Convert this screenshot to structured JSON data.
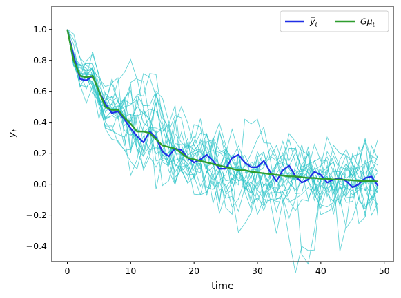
{
  "chart_data": {
    "type": "line",
    "xlabel": "time",
    "ylabel": "y_t",
    "xlim": [
      -2.45,
      51.45
    ],
    "ylim": [
      -0.5,
      1.15
    ],
    "x_ticks": [
      0,
      10,
      20,
      30,
      40,
      50
    ],
    "x_tick_labels": [
      "0",
      "10",
      "20",
      "30",
      "40",
      "50"
    ],
    "y_ticks": [
      -0.4,
      -0.2,
      0.0,
      0.2,
      0.4,
      0.6,
      0.8,
      1.0
    ],
    "y_tick_labels": [
      "−0.4",
      "−0.2",
      "0.0",
      "0.2",
      "0.4",
      "0.6",
      "0.8",
      "1.0"
    ],
    "grid": false,
    "legend_position": "upper-right",
    "x": [
      0,
      1,
      2,
      3,
      4,
      5,
      6,
      7,
      8,
      9,
      10,
      11,
      12,
      13,
      14,
      15,
      16,
      17,
      18,
      19,
      20,
      21,
      22,
      23,
      24,
      25,
      26,
      27,
      28,
      29,
      30,
      31,
      32,
      33,
      34,
      35,
      36,
      37,
      38,
      39,
      40,
      41,
      42,
      43,
      44,
      45,
      46,
      47,
      48,
      49
    ],
    "series": [
      {
        "name": "ȳ_t",
        "color": "#1f2ee6",
        "values": [
          1.0,
          0.83,
          0.68,
          0.67,
          0.7,
          0.6,
          0.52,
          0.46,
          0.47,
          0.42,
          0.36,
          0.31,
          0.27,
          0.34,
          0.3,
          0.21,
          0.18,
          0.23,
          0.22,
          0.17,
          0.14,
          0.16,
          0.19,
          0.15,
          0.1,
          0.1,
          0.17,
          0.19,
          0.14,
          0.11,
          0.11,
          0.15,
          0.08,
          0.02,
          0.09,
          0.12,
          0.05,
          0.01,
          0.03,
          0.08,
          0.06,
          0.01,
          0.03,
          0.04,
          0.02,
          -0.02,
          0.0,
          0.04,
          0.05,
          -0.01
        ]
      },
      {
        "name": "Gμ_t",
        "color": "#2e9d2e",
        "values": [
          1.0,
          0.8,
          0.7,
          0.69,
          0.7,
          0.6,
          0.5,
          0.48,
          0.48,
          0.43,
          0.39,
          0.34,
          0.34,
          0.33,
          0.29,
          0.25,
          0.24,
          0.23,
          0.2,
          0.17,
          0.16,
          0.15,
          0.14,
          0.13,
          0.12,
          0.11,
          0.1,
          0.09,
          0.09,
          0.08,
          0.075,
          0.07,
          0.065,
          0.06,
          0.055,
          0.05,
          0.05,
          0.045,
          0.04,
          0.04,
          0.035,
          0.035,
          0.03,
          0.03,
          0.028,
          0.025,
          0.022,
          0.02,
          0.02,
          0.018
        ]
      }
    ],
    "sample_paths": {
      "count": 20,
      "color": "#2ec4c8",
      "note_free_seed": 7
    }
  },
  "legend": {
    "items": [
      {
        "label_base": "y",
        "label_sub": "t",
        "has_bar": true,
        "color": "#1f2ee6"
      },
      {
        "label_base": "Gμ",
        "label_sub": "t",
        "has_bar": false,
        "color": "#2e9d2e"
      }
    ]
  }
}
